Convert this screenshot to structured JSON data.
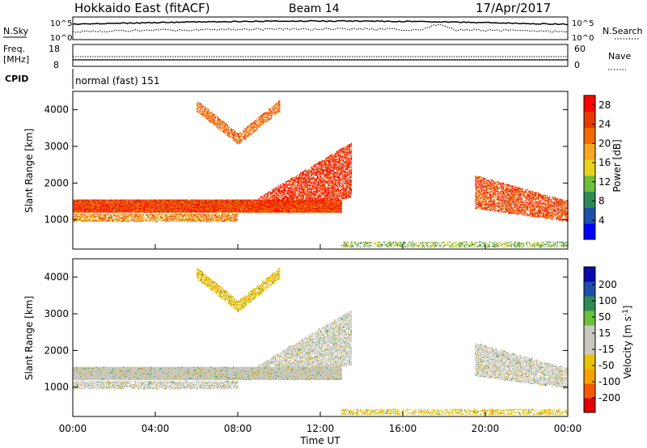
{
  "header": {
    "title": "Hokkaido East (fitACF)",
    "beam": "Beam 14",
    "date": "17/Apr/2017"
  },
  "noise_panel": {
    "left_label": "N.Sky",
    "right_label": "N.Search",
    "left_ticks": [
      "10^5",
      "10^0"
    ],
    "right_ticks": [
      "10^5",
      "10^0"
    ]
  },
  "freq_panel": {
    "left_label": "Freq.",
    "left_unit": "[MHz]",
    "left_ticks": [
      "18",
      "8"
    ],
    "right_label": "Nave",
    "right_ticks": [
      "60",
      "0"
    ],
    "cpid_label": "CPID",
    "cpid_text": "normal (fast) 151"
  },
  "colors": {
    "power_scale": [
      "#0000ff",
      "#1f4fa8",
      "#2e8b57",
      "#6dbf3b",
      "#e8d21a",
      "#f5a623",
      "#f26a00",
      "#e83a00",
      "#ff0000"
    ],
    "velocity_scale": [
      "#e00000",
      "#f25a00",
      "#f5a200",
      "#e6c200",
      "#c8c8c0",
      "#c8c8c0",
      "#6dbf3b",
      "#2e8b57",
      "#1f4fa8",
      "#0a0ab0"
    ],
    "ground_scatter": "#c8c8c0"
  },
  "chart_data": [
    {
      "type": "heatmap",
      "name": "power",
      "xlabel": "Time UT",
      "ylabel": "Slant Range [km]",
      "x_ticks": [
        "00:00",
        "04:00",
        "08:00",
        "12:00",
        "16:00",
        "20:00",
        "00:00"
      ],
      "y_ticks": [
        "1000",
        "2000",
        "3000",
        "4000"
      ],
      "ylim": [
        200,
        4500
      ],
      "colorbar": {
        "label": "Power [dB]",
        "ticks": [
          "4",
          "8",
          "12",
          "16",
          "20",
          "24",
          "28"
        ],
        "range": [
          0,
          30
        ]
      },
      "features": [
        {
          "label": "band-main",
          "t_start": 0,
          "t_end": 13,
          "range_km": [
            1200,
            1550
          ],
          "dominant_value_db": 24
        },
        {
          "label": "band-inner",
          "t_start": 0,
          "t_end": 8,
          "range_km": [
            950,
            1150
          ],
          "dominant_value_db": 20
        },
        {
          "label": "rising-echoes",
          "t_start": 9,
          "t_end": 13.5,
          "range_km": [
            1300,
            3100
          ],
          "dominant_value_db": 26
        },
        {
          "label": "evening-fan",
          "t_start": 19.5,
          "t_end": 24,
          "range_km": [
            900,
            2200
          ],
          "dominant_value_db": 24
        },
        {
          "label": "near-range",
          "t_start": 13,
          "t_end": 24,
          "range_km": [
            250,
            400
          ],
          "dominant_value_db": 12
        },
        {
          "label": "high-arc",
          "t_start": 6,
          "t_end": 10,
          "range_km": [
            2900,
            4400
          ],
          "dominant_value_db": 22
        }
      ]
    },
    {
      "type": "heatmap",
      "name": "velocity",
      "xlabel": "Time UT",
      "ylabel": "Slant Range [km]",
      "x_ticks": [
        "00:00",
        "04:00",
        "08:00",
        "12:00",
        "16:00",
        "20:00",
        "00:00"
      ],
      "y_ticks": [
        "1000",
        "2000",
        "3000",
        "4000"
      ],
      "ylim": [
        200,
        4500
      ],
      "colorbar": {
        "label": "Velocity [m s^-1]",
        "ticks": [
          "200",
          "100",
          "50",
          "15",
          "-15",
          "-50",
          "-100",
          "-200"
        ],
        "range": [
          -250,
          250
        ]
      },
      "features": [
        {
          "label": "band-main",
          "t_start": 0,
          "t_end": 13,
          "range_km": [
            1200,
            1550
          ],
          "dominant_value": 0
        },
        {
          "label": "band-inner",
          "t_start": 0,
          "t_end": 8,
          "range_km": [
            950,
            1150
          ],
          "dominant_value": 0
        },
        {
          "label": "rising-echoes",
          "t_start": 9,
          "t_end": 13.5,
          "range_km": [
            1300,
            3100
          ],
          "dominant_value": 0
        },
        {
          "label": "evening-fan",
          "t_start": 19.5,
          "t_end": 24,
          "range_km": [
            900,
            2200
          ],
          "dominant_value": 0
        },
        {
          "label": "near-range",
          "t_start": 13,
          "t_end": 24,
          "range_km": [
            250,
            400
          ],
          "dominant_value": -40
        },
        {
          "label": "high-arc",
          "t_start": 6,
          "t_end": 10,
          "range_km": [
            2900,
            4400
          ],
          "dominant_value": -40
        }
      ]
    }
  ]
}
